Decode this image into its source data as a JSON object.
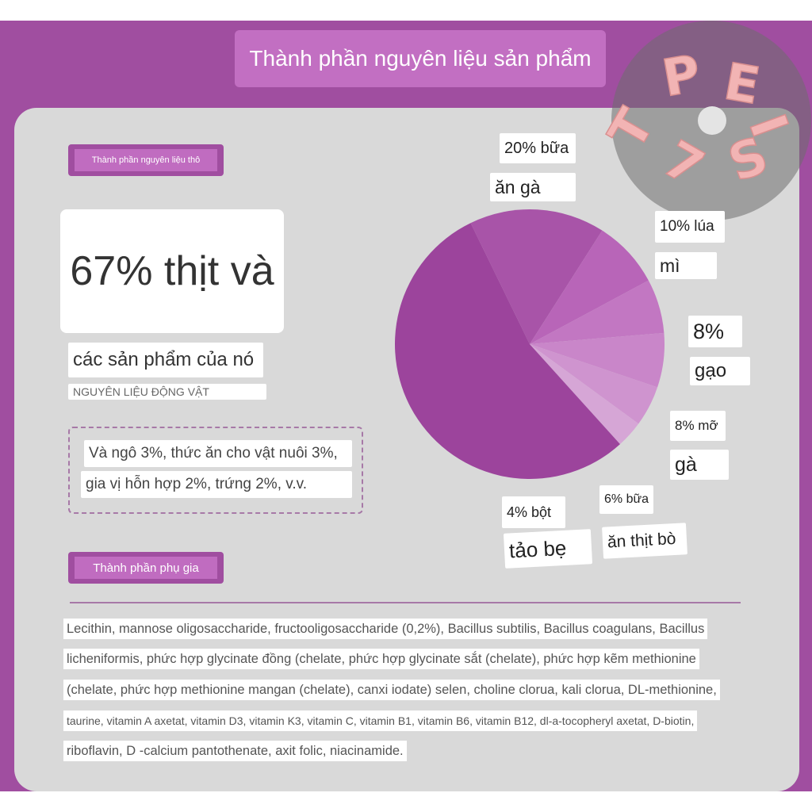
{
  "title": "Thành phần nguyên liệu sản phẩm",
  "watermark": [
    "P",
    "E",
    "T",
    "I",
    "7",
    "S"
  ],
  "raw_section": {
    "tag": "Thành phần nguyên liệu thô",
    "headline": "67% thịt và",
    "headline_cont": "các sản phẩm của nó",
    "subtitle": "NGUYÊN LIỆU ĐỘNG VẬT",
    "note_lines": [
      "Và ngô 3%, thức ăn cho vật nuôi 3%,",
      "gia vị hỗn hợp 2%, trứng 2%, v.v."
    ]
  },
  "chart_data": {
    "type": "pie",
    "values": [
      20,
      10,
      8,
      8,
      6,
      4,
      67
    ],
    "categories": [
      [
        "20% bữa",
        "ăn gà"
      ],
      [
        "10% lúa",
        "mì"
      ],
      [
        "8%",
        "gạo"
      ],
      [
        "8% mỡ",
        "gà"
      ],
      [
        "6% bữa",
        "ăn thịt bò"
      ],
      [
        "4% bột",
        "tảo bẹ"
      ],
      null
    ],
    "colors": [
      "#a854a8",
      "#b865b8",
      "#c277c2",
      "#c986c9",
      "#cf94cf",
      "#d6a6d6",
      "#9c449c"
    ]
  },
  "additive_section": {
    "tag": "Thành phần phụ gia",
    "lines": [
      "Lecithin, mannose oligosaccharide, fructooligosaccharide (0,2%), Bacillus subtilis, Bacillus coagulans, Bacillus",
      "licheniformis, phức hợp glycinate đồng (chelate, phức hợp glycinate sắt (chelate), phức hợp kẽm methionine",
      "(chelate, phức hợp methionine mangan (chelate), canxi iodate) selen, choline clorua, kali clorua, DL-methionine,",
      "taurine, vitamin A axetat, vitamin D3, vitamin K3, vitamin C, vitamin B1, vitamin B6, vitamin B12, dl-a-tocopheryl axetat, D-biotin,",
      "riboflavin, D -calcium pantothenate, axit folic, niacinamide."
    ]
  }
}
